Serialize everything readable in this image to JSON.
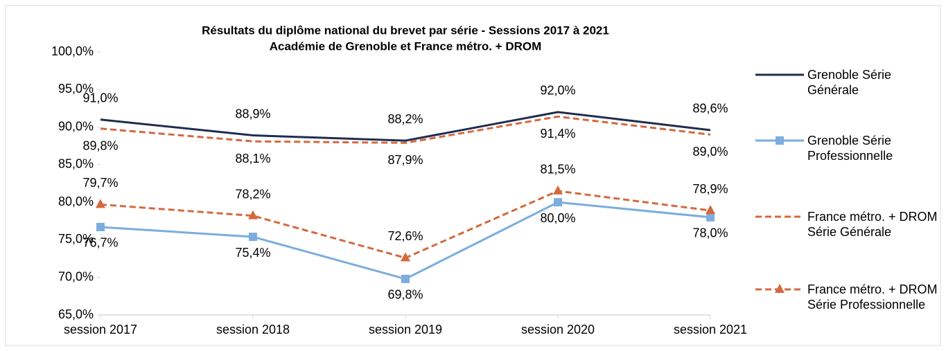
{
  "chart_data": {
    "type": "line",
    "title": "Résultats du diplôme national du brevet par série - Sessions 2017 à 2021",
    "subtitle": "Académie de Grenoble et France métro. + DROM",
    "categories": [
      "session 2017",
      "session 2018",
      "session 2019",
      "session 2020",
      "session 2021"
    ],
    "series": [
      {
        "name": "Grenoble Série Générale",
        "color": "#1f2d4e",
        "dash": false,
        "marker": null,
        "values": [
          91.0,
          88.9,
          88.2,
          92.0,
          89.6
        ],
        "value_labels": [
          "91,0%",
          "88,9%",
          "88,2%",
          "92,0%",
          "89,6%"
        ]
      },
      {
        "name": "Grenoble Série Professionnelle",
        "color": "#7badde",
        "dash": false,
        "marker": "square",
        "values": [
          76.7,
          75.4,
          69.8,
          80.0,
          78.0
        ],
        "value_labels": [
          "76,7%",
          "75,4%",
          "69,8%",
          "80,0%",
          "78,0%"
        ]
      },
      {
        "name": "France métro. + DROM Série Générale",
        "color": "#d4683e",
        "dash": true,
        "marker": null,
        "values": [
          89.8,
          88.1,
          87.9,
          91.4,
          89.0
        ],
        "value_labels": [
          "89,8%",
          "88,1%",
          "87,9%",
          "91,4%",
          "89,0%"
        ]
      },
      {
        "name": "France métro. + DROM Série Professionnelle",
        "color": "#d4683e",
        "dash": true,
        "marker": "triangle",
        "values": [
          79.7,
          78.2,
          72.6,
          81.5,
          78.9
        ],
        "value_labels": [
          "79,7%",
          "78,2%",
          "72,6%",
          "81,5%",
          "78,9%"
        ]
      }
    ],
    "ylim": [
      65,
      100
    ],
    "yticks": [
      {
        "value": 65,
        "label": "65,0%"
      },
      {
        "value": 70,
        "label": "70,0%"
      },
      {
        "value": 75,
        "label": "75,0%"
      },
      {
        "value": 80,
        "label": "80,0%"
      },
      {
        "value": 85,
        "label": "85,0%"
      },
      {
        "value": 90,
        "label": "90,0%"
      },
      {
        "value": 95,
        "label": "95,0%"
      },
      {
        "value": 100,
        "label": "100,0%"
      }
    ],
    "legend": "right"
  }
}
